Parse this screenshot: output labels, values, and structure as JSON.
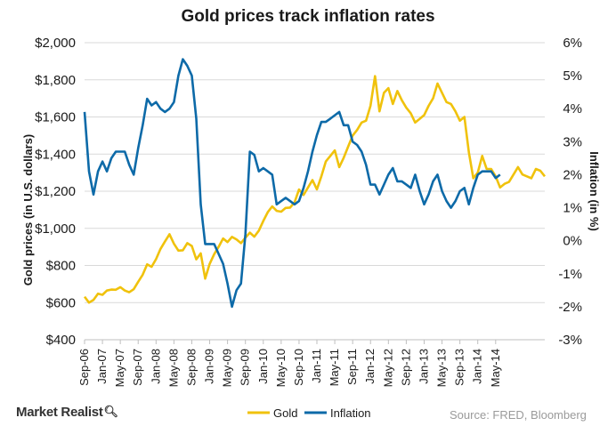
{
  "chart_data": {
    "type": "line",
    "title": "Gold prices track inflation rates",
    "ylabel_left": "Gold prices (in U.S. dollars)",
    "ylabel_right": "Inflation (in %)",
    "y_left_ticks": [
      "$400",
      "$600",
      "$800",
      "$1,000",
      "$1,200",
      "$1,400",
      "$1,600",
      "$1,800",
      "$2,000"
    ],
    "y_left_range": [
      400,
      2000
    ],
    "y_right_ticks": [
      "-3%",
      "-2%",
      "-1%",
      "0%",
      "1%",
      "2%",
      "3%",
      "4%",
      "5%",
      "6%"
    ],
    "y_right_range": [
      -3,
      6
    ],
    "x_ticks": [
      "Sep-06",
      "Jan-07",
      "May-07",
      "Sep-07",
      "Jan-08",
      "May-08",
      "Sep-08",
      "Jan-09",
      "May-09",
      "Sep-09",
      "Jan-10",
      "May-10",
      "Sep-10",
      "Jan-11",
      "May-11",
      "Sep-11",
      "Jan-12",
      "May-12",
      "Sep-12",
      "Jan-13",
      "May-13",
      "Sep-13",
      "Jan-14",
      "May-14"
    ],
    "grid": "horizontal",
    "legend_position": "bottom",
    "series": [
      {
        "name": "Gold",
        "axis": "left",
        "color": "#f0c20c",
        "values": [
          632,
          600,
          614,
          648,
          642,
          665,
          670,
          669,
          683,
          665,
          656,
          672,
          712,
          750,
          806,
          793,
          834,
          889,
          929,
          968,
          917,
          880,
          882,
          920,
          905,
          833,
          865,
          729,
          808,
          861,
          900,
          945,
          926,
          954,
          940,
          920,
          950,
          977,
          955,
          988,
          1040,
          1087,
          1118,
          1094,
          1090,
          1110,
          1112,
          1140,
          1209,
          1180,
          1220,
          1260,
          1210,
          1280,
          1360,
          1390,
          1420,
          1330,
          1380,
          1440,
          1500,
          1530,
          1570,
          1580,
          1660,
          1820,
          1630,
          1730,
          1755,
          1670,
          1740,
          1690,
          1650,
          1620,
          1570,
          1590,
          1610,
          1660,
          1700,
          1780,
          1730,
          1680,
          1670,
          1630,
          1580,
          1600,
          1410,
          1270,
          1300,
          1390,
          1320,
          1320,
          1280,
          1220,
          1240,
          1250,
          1290,
          1330,
          1290,
          1280,
          1270,
          1320,
          1310,
          1280
        ]
      },
      {
        "name": "Inflation",
        "axis": "right",
        "color": "#0d6aa8",
        "values": [
          3.9,
          2.1,
          1.4,
          2.1,
          2.4,
          2.1,
          2.5,
          2.7,
          2.7,
          2.7,
          2.3,
          2.0,
          2.8,
          3.5,
          4.3,
          4.1,
          4.2,
          4.0,
          3.9,
          4.0,
          4.2,
          5.0,
          5.5,
          5.3,
          5.0,
          3.7,
          1.1,
          -0.1,
          -0.1,
          -0.1,
          -0.4,
          -0.7,
          -1.3,
          -2.0,
          -1.5,
          -1.3,
          0.2,
          2.7,
          2.6,
          2.1,
          2.2,
          2.1,
          2.0,
          1.1,
          1.2,
          1.3,
          1.2,
          1.1,
          1.2,
          1.6,
          2.1,
          2.7,
          3.2,
          3.6,
          3.6,
          3.7,
          3.8,
          3.9,
          3.5,
          3.5,
          3.0,
          2.9,
          2.7,
          2.3,
          1.7,
          1.7,
          1.4,
          1.7,
          2.0,
          2.2,
          1.8,
          1.8,
          1.7,
          1.6,
          2.0,
          1.5,
          1.1,
          1.4,
          1.8,
          2.0,
          1.5,
          1.2,
          1.0,
          1.2,
          1.5,
          1.6,
          1.1,
          1.6,
          2.0,
          2.1,
          2.1,
          2.1,
          1.9,
          2.0
        ]
      }
    ]
  },
  "footer": {
    "brand": "Market Realist",
    "brand_icon": "magnifier-icon",
    "source": "Source: FRED, Bloomberg"
  }
}
